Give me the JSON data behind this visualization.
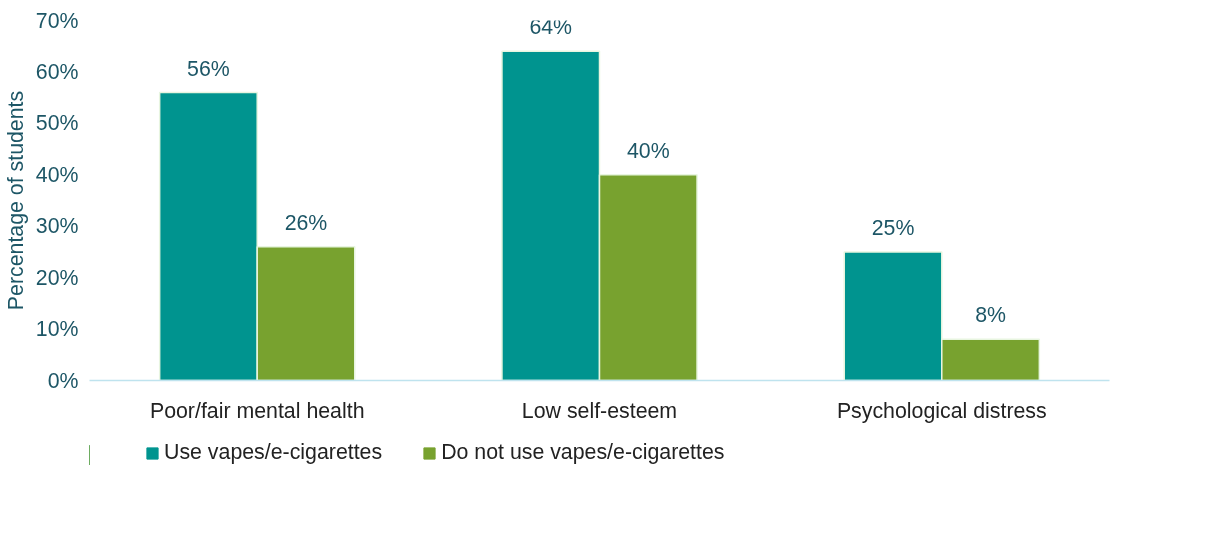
{
  "chart_data": {
    "type": "bar",
    "ylabel": "Percentage of students",
    "categories": [
      "Poor/fair mental health",
      "Low self-esteem",
      "Psychological distress"
    ],
    "series": [
      {
        "name": "Use vapes/e-cigarettes",
        "color": "#00948f",
        "values": [
          56,
          64,
          25
        ],
        "value_labels": [
          "56%",
          "64%",
          "25%"
        ]
      },
      {
        "name": "Do not use vapes/e-cigarettes",
        "color": "#78a22f",
        "values": [
          26,
          40,
          8
        ],
        "value_labels": [
          "26%",
          "40%",
          "8%"
        ]
      }
    ],
    "ylim": [
      0,
      70
    ],
    "yticks": [
      {
        "value": 0,
        "label": "0%"
      },
      {
        "value": 10,
        "label": "10%"
      },
      {
        "value": 20,
        "label": "20%"
      },
      {
        "value": 30,
        "label": "30%"
      },
      {
        "value": 40,
        "label": "40%"
      },
      {
        "value": 50,
        "label": "50%"
      },
      {
        "value": 60,
        "label": "60%"
      },
      {
        "value": 70,
        "label": "70%"
      }
    ],
    "grid": false,
    "legend": "bottom"
  }
}
